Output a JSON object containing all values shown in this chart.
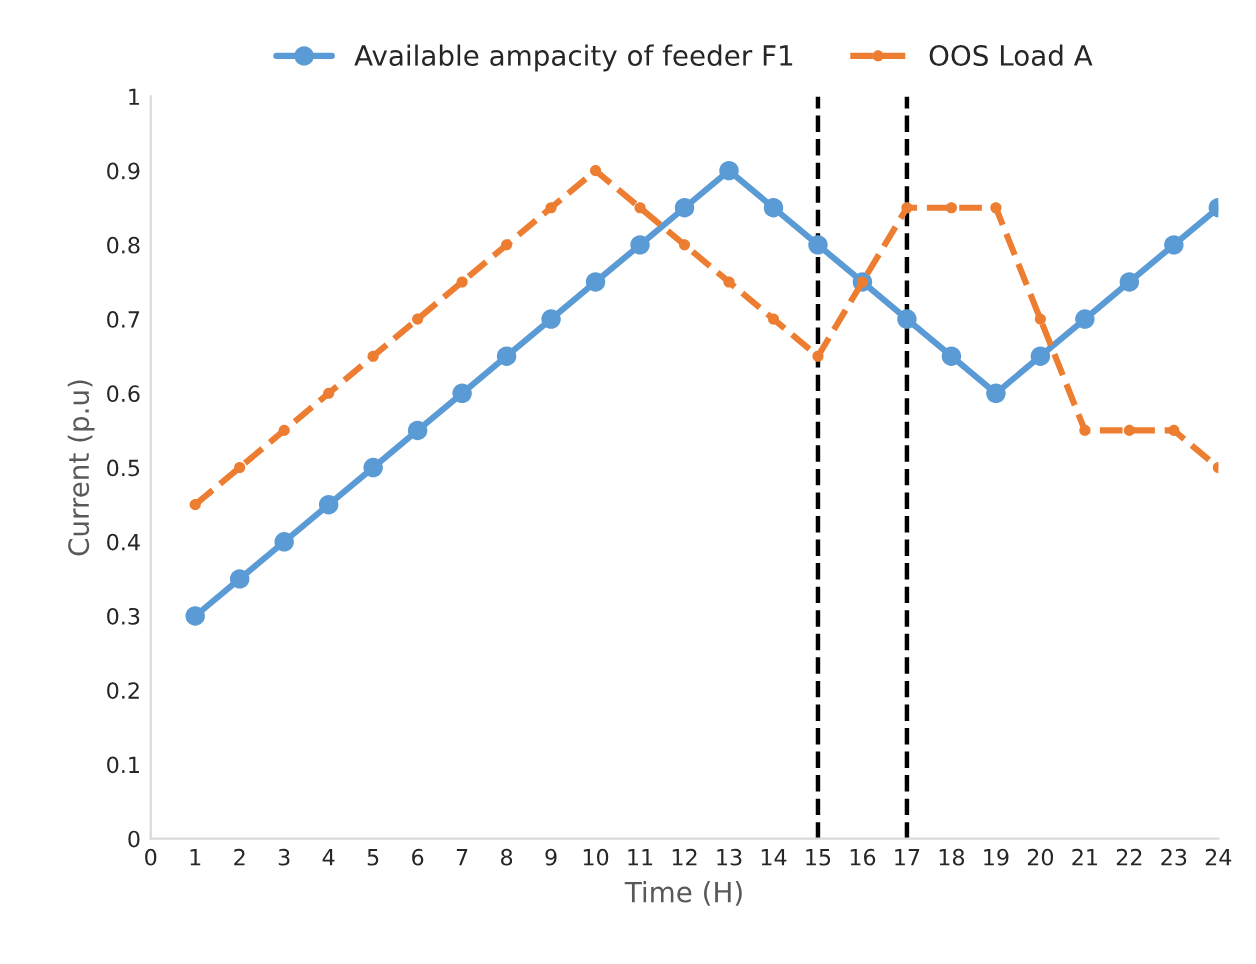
{
  "chart_data": {
    "type": "line",
    "xlabel": "Time (H)",
    "ylabel": "Current (p.u)",
    "x": [
      1,
      2,
      3,
      4,
      5,
      6,
      7,
      8,
      9,
      10,
      11,
      12,
      13,
      14,
      15,
      16,
      17,
      18,
      19,
      20,
      21,
      22,
      23,
      24
    ],
    "xlim": [
      0,
      24
    ],
    "xticks": [
      0,
      1,
      2,
      3,
      4,
      5,
      6,
      7,
      8,
      9,
      10,
      11,
      12,
      13,
      14,
      15,
      16,
      17,
      18,
      19,
      20,
      21,
      22,
      23,
      24
    ],
    "ylim": [
      0,
      1
    ],
    "yticks": [
      0,
      0.1,
      0.2,
      0.3,
      0.4,
      0.5,
      0.6,
      0.7,
      0.8,
      0.9,
      1
    ],
    "grid": false,
    "legend": "top",
    "marker": "circle",
    "series": [
      {
        "name": "Available ampacity of feeder F1",
        "color": "#5b9bd5",
        "line_style": "solid",
        "values": [
          0.3,
          0.35,
          0.4,
          0.45,
          0.5,
          0.55,
          0.6,
          0.65,
          0.7,
          0.75,
          0.8,
          0.85,
          0.9,
          0.85,
          0.8,
          0.75,
          0.7,
          0.65,
          0.6,
          0.65,
          0.7,
          0.75,
          0.8,
          0.85
        ]
      },
      {
        "name": "OOS Load A",
        "color": "#ed7d31",
        "line_style": "dashed",
        "values": [
          0.45,
          0.5,
          0.55,
          0.6,
          0.65,
          0.7,
          0.75,
          0.8,
          0.85,
          0.9,
          0.85,
          0.8,
          0.75,
          0.7,
          0.65,
          0.75,
          0.85,
          0.85,
          0.85,
          0.7,
          0.55,
          0.55,
          0.55,
          0.5
        ]
      }
    ],
    "ref_lines": [
      {
        "axis": "x",
        "value": 15,
        "color": "#000000",
        "line_style": "dashed"
      },
      {
        "axis": "x",
        "value": 17,
        "color": "#000000",
        "line_style": "dashed"
      }
    ]
  }
}
